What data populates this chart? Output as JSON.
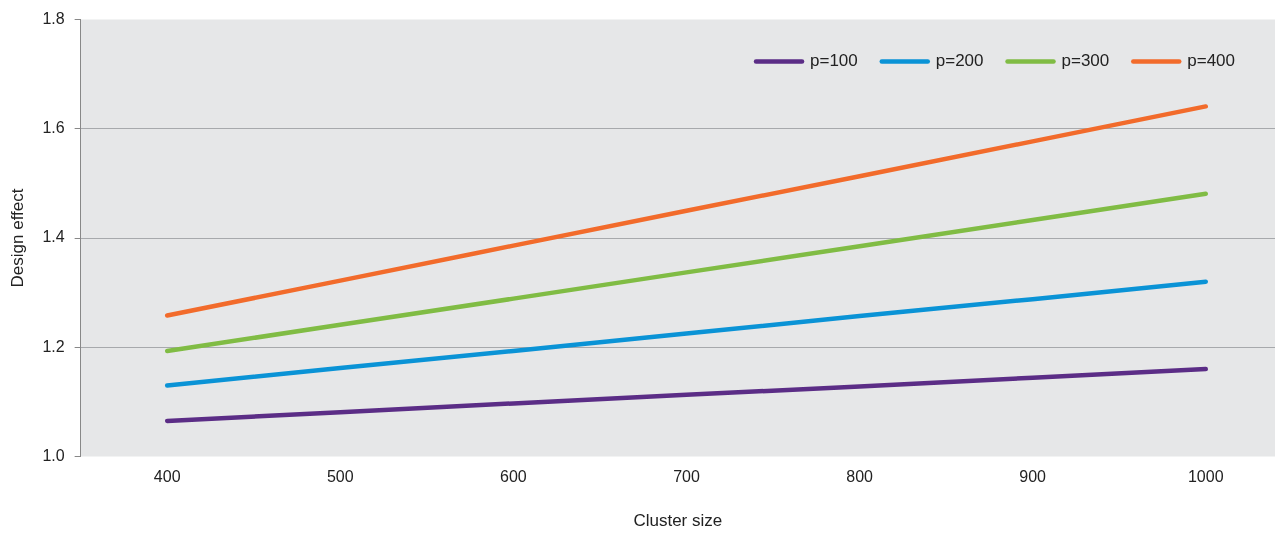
{
  "chart_data": {
    "type": "line",
    "xlabel": "Cluster size",
    "ylabel": "Design effect",
    "x": [
      400,
      500,
      600,
      700,
      800,
      900,
      1000
    ],
    "series": [
      {
        "name": "p=100",
        "color": "#5b2d86",
        "values": [
          1.065,
          1.081,
          1.097,
          1.113,
          1.128,
          1.144,
          1.16
        ]
      },
      {
        "name": "p=200",
        "color": "#0a93d6",
        "values": [
          1.13,
          1.162,
          1.193,
          1.225,
          1.257,
          1.288,
          1.32
        ]
      },
      {
        "name": "p=300",
        "color": "#80bc44",
        "values": [
          1.193,
          1.241,
          1.289,
          1.337,
          1.385,
          1.433,
          1.481
        ]
      },
      {
        "name": "p=400",
        "color": "#f26b2b",
        "values": [
          1.258,
          1.322,
          1.386,
          1.45,
          1.513,
          1.577,
          1.641
        ]
      }
    ],
    "xlim": [
      350,
      1040
    ],
    "xticks": [
      400,
      500,
      600,
      700,
      800,
      900,
      1000
    ],
    "ylim": [
      1.0,
      1.8
    ],
    "yticks": [
      {
        "value": 1.0,
        "label": "1.0"
      },
      {
        "value": 1.2,
        "label": "1.2"
      },
      {
        "value": 1.4,
        "label": "1.4"
      },
      {
        "value": 1.6,
        "label": "1.6"
      },
      {
        "value": 1.8,
        "label": "1.8"
      }
    ],
    "grid": "y",
    "legend": "top right",
    "marker": "none",
    "line_style": "solid"
  }
}
